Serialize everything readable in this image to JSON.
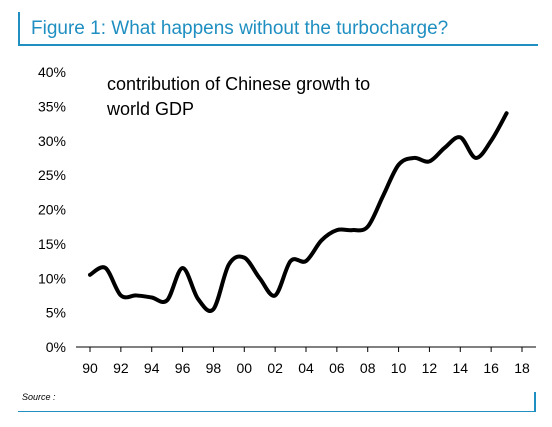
{
  "figure": {
    "title": "Figure 1: What happens without the turbocharge?",
    "source_label": "Source :"
  },
  "colors": {
    "accent": "#1f8fc1",
    "series": "#000000"
  },
  "chart_data": {
    "type": "line",
    "title": "",
    "annotation_lines": [
      "contribution of Chinese growth to",
      "world GDP"
    ],
    "xlabel": "",
    "ylabel": "",
    "ylim": [
      0,
      40
    ],
    "yticks": [
      0,
      5,
      10,
      15,
      20,
      25,
      30,
      35,
      40
    ],
    "ytick_labels": [
      "0%",
      "5%",
      "10%",
      "15%",
      "20%",
      "25%",
      "30%",
      "35%",
      "40%"
    ],
    "xlim": [
      1990,
      2018
    ],
    "xticks": [
      1990,
      1992,
      1994,
      1996,
      1998,
      2000,
      2002,
      2004,
      2006,
      2008,
      2010,
      2012,
      2014,
      2016,
      2018
    ],
    "xtick_labels": [
      "90",
      "92",
      "94",
      "96",
      "98",
      "00",
      "02",
      "04",
      "06",
      "08",
      "10",
      "12",
      "14",
      "16",
      "18"
    ],
    "grid": false,
    "legend": "none",
    "series": [
      {
        "x": [
          1990,
          1991,
          1992,
          1993,
          1994,
          1995,
          1996,
          1997,
          1998,
          1999,
          2000,
          2001,
          2002,
          2003,
          2004,
          2005,
          2006,
          2007,
          2008,
          2009,
          2010,
          2011,
          2012,
          2013,
          2014,
          2015,
          2016,
          2017
        ],
        "y": [
          10.5,
          11.5,
          7.5,
          7.5,
          7.2,
          6.8,
          11.5,
          7.0,
          5.5,
          12.0,
          13.0,
          10.0,
          7.5,
          12.5,
          12.5,
          15.5,
          17.0,
          17.0,
          17.5,
          22.0,
          26.5,
          27.5,
          27.0,
          29.0,
          30.5,
          27.5,
          30.0,
          34.0
        ]
      }
    ]
  }
}
